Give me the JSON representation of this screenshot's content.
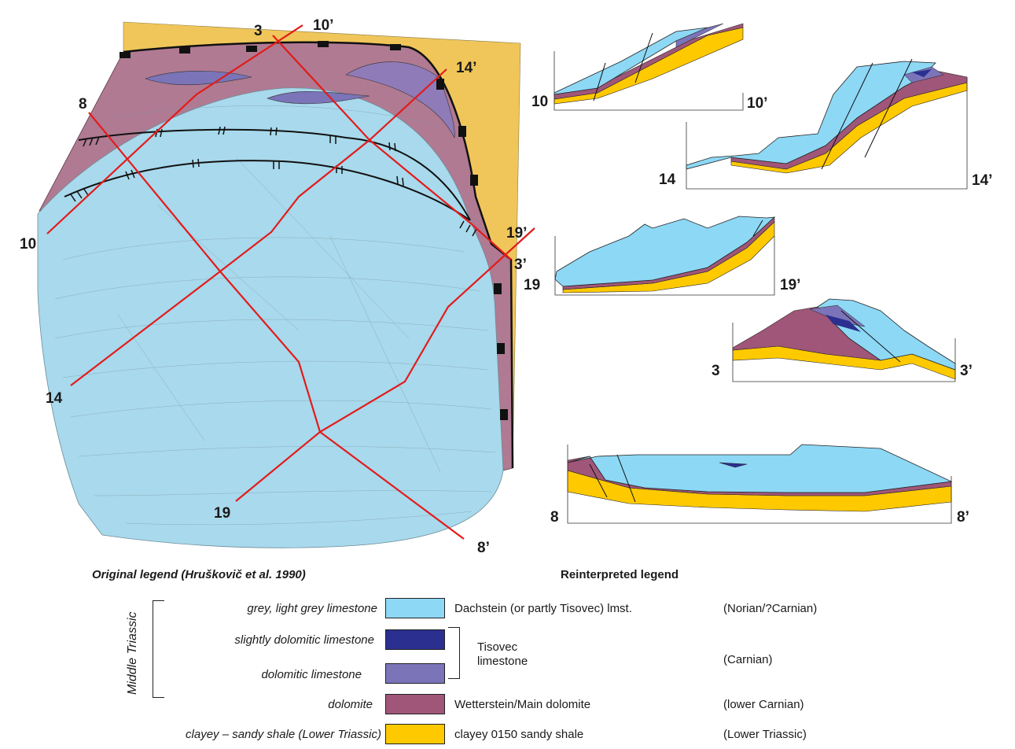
{
  "colors": {
    "dachstein": "#8dd8f5",
    "tisovec_dark": "#2b2f8f",
    "tisovec_light": "#7b74b8",
    "dolomite": "#a05678",
    "shale": "#ffc900",
    "section_line": "#e31b1b"
  },
  "map_labels": {
    "p3": "3",
    "p10p": "10’",
    "p14p": "14’",
    "p8": "8",
    "p10": "10",
    "p19p": "19’",
    "p3p": "3’",
    "p14": "14",
    "p19": "19",
    "p8p": "8’"
  },
  "sections": [
    {
      "id": "10",
      "left": "10",
      "right": "10’"
    },
    {
      "id": "14",
      "left": "14",
      "right": "14’"
    },
    {
      "id": "19",
      "left": "19",
      "right": "19’"
    },
    {
      "id": "3",
      "left": "3",
      "right": "3’"
    },
    {
      "id": "8",
      "left": "8",
      "right": "8’"
    }
  ],
  "legend": {
    "original_title": "Original legend (Hruškovič et al. 1990)",
    "reinterpreted_title": "Reinterpreted legend",
    "group_label": "Middle Triassic",
    "rows": [
      {
        "original": "grey, light grey limestone",
        "reinterpreted": "Dachstein (or partly Tisovec) lmst.",
        "age": "(Norian/?Carnian)"
      },
      {
        "original": "slightly dolomitic limestone",
        "reinterpreted": "",
        "age": ""
      },
      {
        "original": "dolomitic limestone",
        "reinterpreted": "",
        "age": ""
      },
      {
        "original": "dolomite",
        "reinterpreted": "Wetterstein/Main dolomite",
        "age": "(lower Carnian)"
      },
      {
        "original": "clayey – sandy shale (Lower Triassic)",
        "reinterpreted": "clayey 0150 sandy shale",
        "age": "(Lower Triassic)"
      }
    ],
    "tisovec_label_1": "Tisovec",
    "tisovec_label_2": "limestone",
    "tisovec_age": "(Carnian)"
  }
}
